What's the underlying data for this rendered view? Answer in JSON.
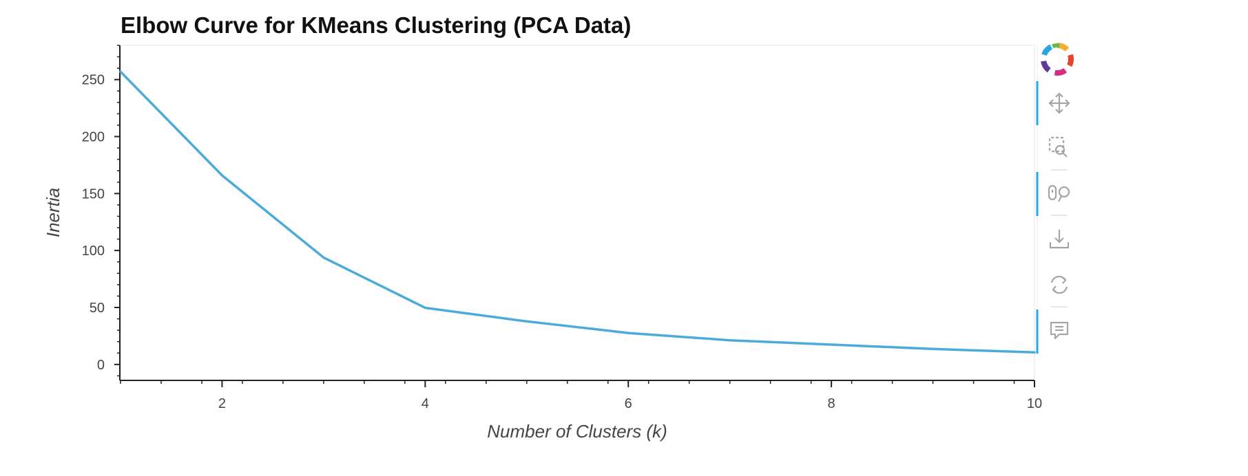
{
  "chart_data": {
    "type": "line",
    "title": "Elbow Curve for KMeans Clustering (PCA Data)",
    "xlabel": "Number of Clusters (k)",
    "ylabel": "Inertia",
    "x": [
      1,
      2,
      3,
      4,
      5,
      6,
      7,
      8,
      9,
      10
    ],
    "series": [
      {
        "values": [
          256.9,
          165.9,
          93.8,
          49.7,
          37.8,
          27.6,
          21.2,
          17.4,
          13.6,
          10.6
        ],
        "color": "#4aabdb"
      }
    ],
    "xlim": [
      1,
      10
    ],
    "ylim": [
      -14,
      280
    ],
    "x_ticks": [
      2,
      4,
      6,
      8,
      10
    ],
    "x_tick_labels": [
      "2",
      "4",
      "6",
      "8",
      "10"
    ],
    "y_ticks": [
      0,
      50,
      100,
      150,
      200,
      250
    ],
    "y_tick_labels": [
      "0",
      "50",
      "100",
      "150",
      "200",
      "250"
    ],
    "x_minor_step": 0.4,
    "y_minor_step": 10,
    "grid": false,
    "legend": "none"
  },
  "toolbar": {
    "logo_icon": "bokeh-logo-icon",
    "tools": [
      {
        "icon": "pan-icon",
        "active": true
      },
      {
        "icon": "box-zoom-icon",
        "active": false
      },
      {
        "icon": "wheel-zoom-icon",
        "active": true
      },
      {
        "icon": "save-icon",
        "active": false
      },
      {
        "icon": "reset-icon",
        "active": false
      },
      {
        "icon": "hover-icon",
        "active": true
      }
    ],
    "active_color": "#26aae1",
    "icon_color": "#a5a5a5"
  }
}
